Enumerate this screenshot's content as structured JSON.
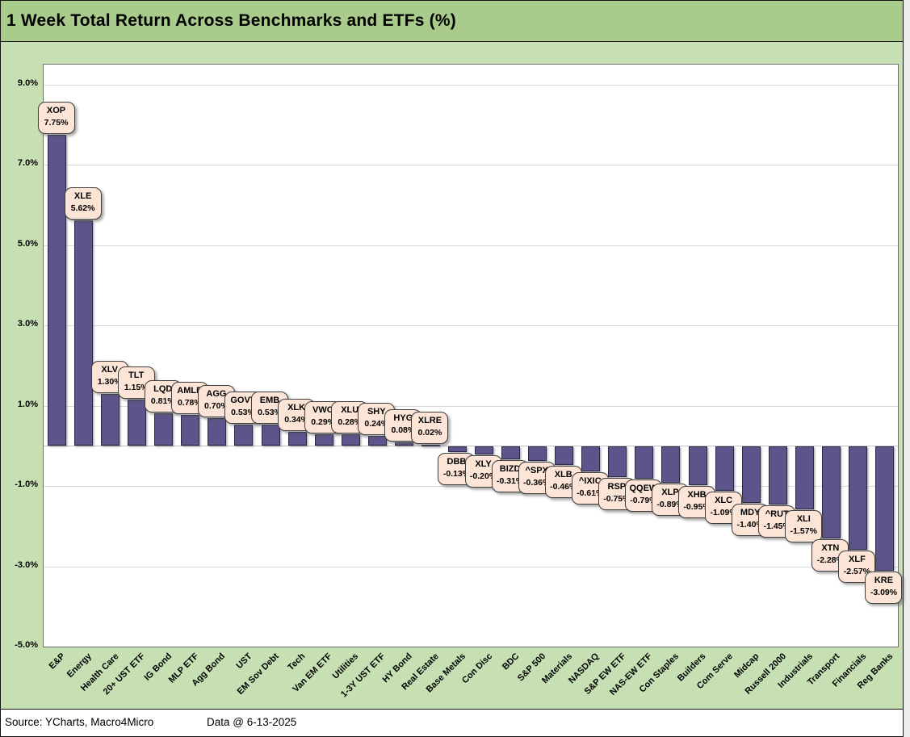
{
  "header": {
    "title": "1 Week Total Return Across Benchmarks and ETFs (%)"
  },
  "footer": {
    "source": "Source: YCharts, Macro4Micro",
    "data_date": "Data @ 6-13-2025"
  },
  "colors": {
    "title_bar_bg": "#a9cc8c",
    "chart_bg": "#c6e0b4",
    "plot_bg": "#ffffff",
    "bar_fill": "#5c548a",
    "bar_border": "#2b2845",
    "callout_bg": "#fce4d6",
    "callout_border": "#3f3f3f",
    "gridline": "#d9d9d9"
  },
  "chart_data": {
    "type": "bar",
    "title": "1 Week Total Return Across Benchmarks and ETFs (%)",
    "xlabel": "",
    "ylabel": "",
    "ylim": [
      -5,
      9.5
    ],
    "grid": true,
    "legend": "none",
    "y_ticks": [
      {
        "value": 9,
        "label": "9.0%"
      },
      {
        "value": 7,
        "label": "7.0%"
      },
      {
        "value": 5,
        "label": "5.0%"
      },
      {
        "value": 3,
        "label": "3.0%"
      },
      {
        "value": 1,
        "label": "1.0%"
      },
      {
        "value": -1,
        "label": "-1.0%"
      },
      {
        "value": -3,
        "label": "-3.0%"
      },
      {
        "value": -5,
        "label": "-5.0%"
      }
    ],
    "points": [
      {
        "category": "E&P",
        "ticker": "XOP",
        "value": 7.75,
        "label": "7.75%"
      },
      {
        "category": "Energy",
        "ticker": "XLE",
        "value": 5.62,
        "label": "5.62%"
      },
      {
        "category": "Health Care",
        "ticker": "XLV",
        "value": 1.3,
        "label": "1.30%"
      },
      {
        "category": "20+ UST ETF",
        "ticker": "TLT",
        "value": 1.15,
        "label": "1.15%"
      },
      {
        "category": "IG Bond",
        "ticker": "LQD",
        "value": 0.81,
        "label": "0.81%"
      },
      {
        "category": "MLP ETF",
        "ticker": "AMLP",
        "value": 0.78,
        "label": "0.78%"
      },
      {
        "category": "Agg Bond",
        "ticker": "AGG",
        "value": 0.7,
        "label": "0.70%"
      },
      {
        "category": "UST",
        "ticker": "GOVT",
        "value": 0.53,
        "label": "0.53%"
      },
      {
        "category": "EM Sov Debt",
        "ticker": "EMB",
        "value": 0.53,
        "label": "0.53%"
      },
      {
        "category": "Tech",
        "ticker": "XLK",
        "value": 0.34,
        "label": "0.34%"
      },
      {
        "category": "Van EM ETF",
        "ticker": "VWO",
        "value": 0.29,
        "label": "0.29%"
      },
      {
        "category": "Utilities",
        "ticker": "XLU",
        "value": 0.28,
        "label": "0.28%"
      },
      {
        "category": "1-3Y UST ETF",
        "ticker": "SHY",
        "value": 0.24,
        "label": "0.24%"
      },
      {
        "category": "HY Bond",
        "ticker": "HYG",
        "value": 0.08,
        "label": "0.08%"
      },
      {
        "category": "Real Estate",
        "ticker": "XLRE",
        "value": 0.02,
        "label": "0.02%"
      },
      {
        "category": "Base Metals",
        "ticker": "DBB",
        "value": -0.13,
        "label": "-0.13%"
      },
      {
        "category": "Con Disc",
        "ticker": "XLY",
        "value": -0.2,
        "label": "-0.20%"
      },
      {
        "category": "BDC",
        "ticker": "BIZD",
        "value": -0.31,
        "label": "-0.31%"
      },
      {
        "category": "S&P 500",
        "ticker": "^SPX",
        "value": -0.36,
        "label": "-0.36%"
      },
      {
        "category": "Materials",
        "ticker": "XLB",
        "value": -0.46,
        "label": "-0.46%"
      },
      {
        "category": "NASDAQ",
        "ticker": "^IXIC",
        "value": -0.61,
        "label": "-0.61%"
      },
      {
        "category": "S&P EW ETF",
        "ticker": "RSP",
        "value": -0.75,
        "label": "-0.75%"
      },
      {
        "category": "NAS-EW ETF",
        "ticker": "QQEW",
        "value": -0.79,
        "label": "-0.79%"
      },
      {
        "category": "Con Staples",
        "ticker": "XLP",
        "value": -0.89,
        "label": "-0.89%"
      },
      {
        "category": "Builders",
        "ticker": "XHB",
        "value": -0.95,
        "label": "-0.95%"
      },
      {
        "category": "Com Serve",
        "ticker": "XLC",
        "value": -1.09,
        "label": "-1.09%"
      },
      {
        "category": "Midcap",
        "ticker": "MDY",
        "value": -1.4,
        "label": "-1.40%"
      },
      {
        "category": "Russell 2000",
        "ticker": "^RUT",
        "value": -1.45,
        "label": "-1.45%"
      },
      {
        "category": "Industrials",
        "ticker": "XLI",
        "value": -1.57,
        "label": "-1.57%"
      },
      {
        "category": "Transport",
        "ticker": "XTN",
        "value": -2.28,
        "label": "-2.28%"
      },
      {
        "category": "Financials",
        "ticker": "XLF",
        "value": -2.57,
        "label": "-2.57%"
      },
      {
        "category": "Reg Banks",
        "ticker": "KRE",
        "value": -3.09,
        "label": "-3.09%"
      }
    ]
  }
}
